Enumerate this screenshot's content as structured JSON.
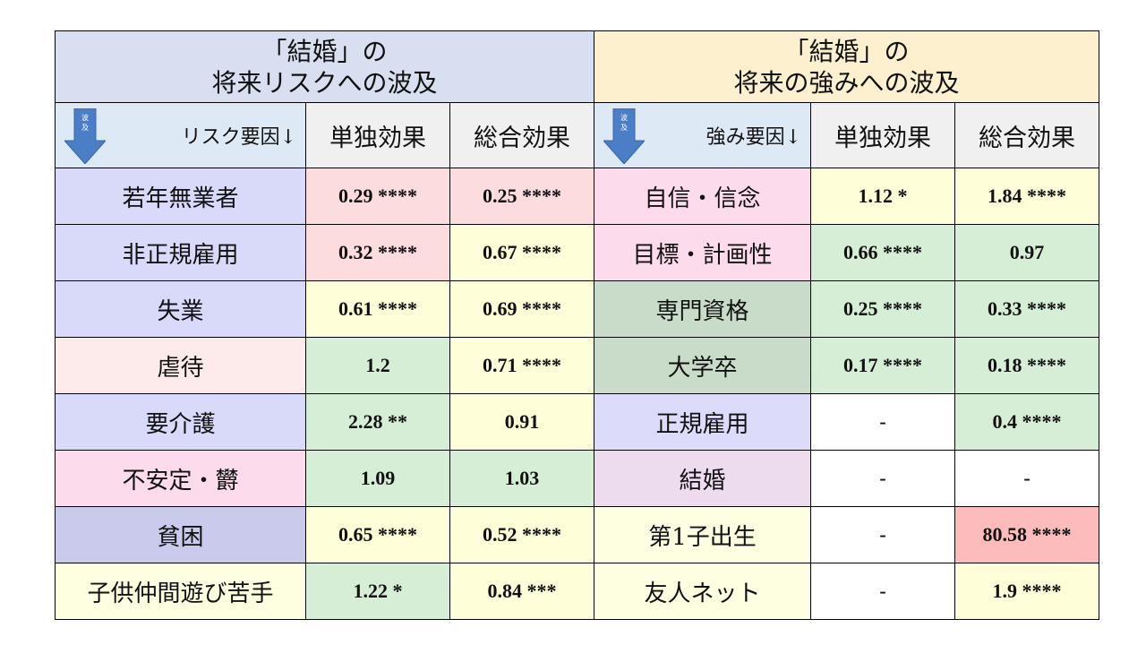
{
  "left_title": {
    "line1": "「結婚」の",
    "line2": "将来リスクへの波及"
  },
  "right_title": {
    "line1": "「結婚」の",
    "line2": "将来の強みへの波及"
  },
  "arrow_text": {
    "c1": "波",
    "c2": "及"
  },
  "left_header": {
    "factor": "リスク要因↓",
    "solo": "単独効果",
    "total": "総合効果"
  },
  "right_header": {
    "factor": "強み要因↓",
    "solo": "単独効果",
    "total": "総合効果"
  },
  "left_rows": [
    {
      "label": "若年無業者",
      "solo": "0.29 ****",
      "total": "0.25 ****"
    },
    {
      "label": "非正規雇用",
      "solo": "0.32 ****",
      "total": "0.67 ****"
    },
    {
      "label": "失業",
      "solo": "0.61 ****",
      "total": "0.69 ****"
    },
    {
      "label": "虐待",
      "solo": "1.2",
      "total": "0.71 ****"
    },
    {
      "label": "要介護",
      "solo": "2.28 **",
      "total": "0.91"
    },
    {
      "label": "不安定・欝",
      "solo": "1.09",
      "total": "1.03"
    },
    {
      "label": "貧困",
      "solo": "0.65 ****",
      "total": "0.52 ****"
    },
    {
      "label": "子供仲間遊び苦手",
      "solo": "1.22 *",
      "total": "0.84 ***"
    }
  ],
  "right_rows": [
    {
      "label": "自信・信念",
      "solo": "1.12 *",
      "total": "1.84 ****"
    },
    {
      "label": "目標・計画性",
      "solo": "0.66 ****",
      "total": "0.97"
    },
    {
      "label": "専門資格",
      "solo": "0.25 ****",
      "total": "0.33 ****"
    },
    {
      "label": "大学卒",
      "solo": "0.17 ****",
      "total": "0.18 ****"
    },
    {
      "label": "正規雇用",
      "solo": "-",
      "total": "0.4 ****"
    },
    {
      "label": "結婚",
      "solo": "-",
      "total": "-"
    },
    {
      "label": "第1子出生",
      "solo": "-",
      "total": "80.58 ****"
    },
    {
      "label": "友人ネット",
      "solo": "-",
      "total": "1.9 ****"
    }
  ],
  "colors": {
    "left_labels": [
      "#d9d9fa",
      "#d9d9fa",
      "#d9d9fa",
      "#fdebeb",
      "#d9d9fa",
      "#fcdcec",
      "#cacaed",
      "#fefee0"
    ],
    "left_solo": [
      "#fcdcdc",
      "#fcdcdc",
      "#fefed9",
      "#d6edd6",
      "#d6edd6",
      "#d6edd6",
      "#fefed9",
      "#d6edd6"
    ],
    "left_total": [
      "#fcdcdc",
      "#fefed9",
      "#fefed9",
      "#fefed9",
      "#fefed9",
      "#d6edd6",
      "#fefed9",
      "#fefed9"
    ],
    "right_labels": [
      "#fcdcec",
      "#fcdcec",
      "#c9dcc9",
      "#c9dcc9",
      "#dcdcfa",
      "#ecdcee",
      "#fefee0",
      "#fefee0"
    ],
    "right_solo": [
      "#fefed9",
      "#d6edd6",
      "#d6edd6",
      "#d6edd6",
      "#ffffff",
      "#ffffff",
      "#ffffff",
      "#ffffff"
    ],
    "right_total": [
      "#fefed9",
      "#d6edd6",
      "#d6edd6",
      "#d6edd6",
      "#d6edd6",
      "#ffffff",
      "#fcbcbc",
      "#fefed9"
    ]
  }
}
